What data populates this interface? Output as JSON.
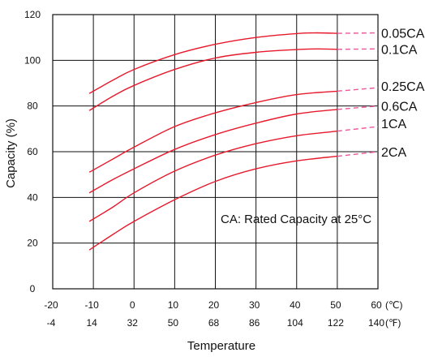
{
  "chart_data": {
    "type": "line",
    "title": "",
    "xlabel": "Temperature",
    "ylabel": "Capacity (%)",
    "x_unit_primary": "(℃)",
    "x_unit_secondary": "(℉)",
    "xlim": [
      -20,
      60
    ],
    "ylim": [
      0,
      120
    ],
    "grid": true,
    "x_ticks": [
      -20,
      -10,
      0,
      10,
      20,
      30,
      40,
      50,
      60
    ],
    "x_ticks_secondary": [
      "-4",
      "14",
      "32",
      "50",
      "68",
      "86",
      "104",
      "122",
      "140"
    ],
    "y_ticks": [
      0,
      20,
      40,
      60,
      80,
      100,
      120
    ],
    "annotation": "CA: Rated Capacity at 25°C",
    "line_color": "#e8192c",
    "extension_color": "#e8589b",
    "series": [
      {
        "name": "0.05CA",
        "x": [
          -11,
          -5,
          0,
          10,
          20,
          30,
          40,
          45,
          50
        ],
        "y": [
          85.5,
          91.5,
          96,
          102.5,
          107,
          110,
          111.7,
          112,
          111.8
        ],
        "extension": {
          "x": [
            50,
            60
          ],
          "y": [
            111.8,
            112
          ]
        }
      },
      {
        "name": "0.1CA",
        "x": [
          -11,
          -5,
          0,
          10,
          20,
          30,
          40,
          45,
          50
        ],
        "y": [
          78,
          84.5,
          89,
          96,
          101,
          103.5,
          104.7,
          105,
          104.8
        ],
        "extension": {
          "x": [
            50,
            60
          ],
          "y": [
            104.8,
            105
          ]
        }
      },
      {
        "name": "0.25CA",
        "x": [
          -11,
          -5,
          0,
          10,
          20,
          30,
          40,
          50
        ],
        "y": [
          51,
          57,
          62,
          71,
          77,
          81.5,
          85,
          86.5
        ],
        "extension": {
          "x": [
            50,
            60
          ],
          "y": [
            86.5,
            88
          ]
        }
      },
      {
        "name": "0.6CA",
        "x": [
          -11,
          -5,
          0,
          10,
          20,
          30,
          40,
          50
        ],
        "y": [
          42,
          48,
          52.5,
          61,
          67.5,
          72.5,
          76.5,
          78.5
        ],
        "extension": {
          "x": [
            50,
            60
          ],
          "y": [
            78.5,
            80
          ]
        }
      },
      {
        "name": "1CA",
        "x": [
          -11,
          -5,
          0,
          10,
          20,
          30,
          40,
          50
        ],
        "y": [
          29.5,
          36,
          42,
          51.5,
          58.5,
          63.5,
          67,
          69
        ],
        "extension": {
          "x": [
            50,
            60
          ],
          "y": [
            69,
            71
          ]
        }
      },
      {
        "name": "2CA",
        "x": [
          -11,
          -5,
          0,
          10,
          20,
          30,
          40,
          50
        ],
        "y": [
          17,
          24,
          29.5,
          39,
          47,
          52.5,
          56,
          58
        ],
        "extension": {
          "x": [
            50,
            60
          ],
          "y": [
            58,
            60
          ]
        }
      }
    ]
  }
}
